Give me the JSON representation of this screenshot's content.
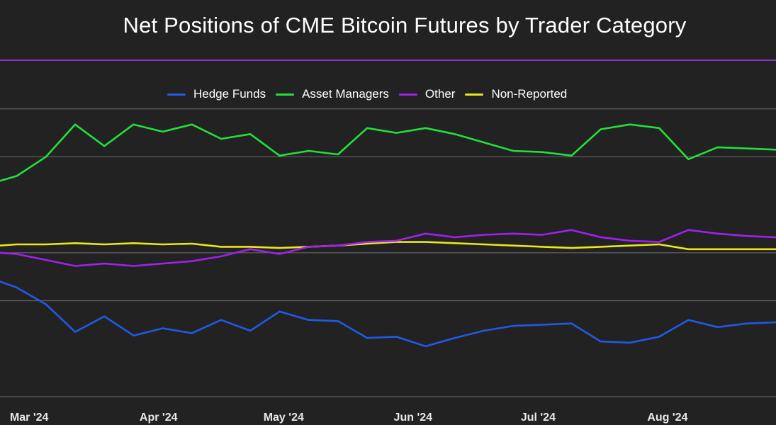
{
  "chart_data": {
    "type": "line",
    "title": "Net Positions of CME Bitcoin Futures by Trader Category",
    "xlabel": "",
    "ylabel": "",
    "x_axis": {
      "type": "date",
      "range": [
        "2024-02-23",
        "2024-08-27"
      ],
      "tick_labels": [
        "Mar '24",
        "Apr '24",
        "May '24",
        "Jun '24",
        "Jul '24",
        "Aug '24"
      ],
      "tick_dates": [
        "2024-03-01",
        "2024-04-01",
        "2024-05-01",
        "2024-06-01",
        "2024-07-01",
        "2024-08-01"
      ]
    },
    "y_axis": {
      "range": [
        -10,
        4
      ],
      "gridlines": [
        -10,
        -6,
        -4,
        0,
        2,
        4
      ],
      "tick_labels_shown": false
    },
    "grid": true,
    "legend": "top-center",
    "dates": [
      "2024-02-23",
      "2024-02-27",
      "2024-03-05",
      "2024-03-12",
      "2024-03-19",
      "2024-03-26",
      "2024-04-02",
      "2024-04-09",
      "2024-04-16",
      "2024-04-23",
      "2024-04-30",
      "2024-05-07",
      "2024-05-14",
      "2024-05-21",
      "2024-05-28",
      "2024-06-04",
      "2024-06-11",
      "2024-06-18",
      "2024-06-25",
      "2024-07-02",
      "2024-07-09",
      "2024-07-16",
      "2024-07-23",
      "2024-07-30",
      "2024-08-06",
      "2024-08-13",
      "2024-08-20",
      "2024-08-27"
    ],
    "series": [
      {
        "name": "Hedge Funds",
        "color": "#1f5ae8",
        "values": [
          -5.2,
          -5.45,
          -6.15,
          -7.3,
          -6.65,
          -7.45,
          -7.15,
          -7.35,
          -6.8,
          -7.25,
          -6.45,
          -6.8,
          -6.85,
          -7.55,
          -7.5,
          -7.9,
          -7.55,
          -7.25,
          -7.05,
          -7.0,
          -6.95,
          -7.7,
          -7.75,
          -7.5,
          -6.8,
          -7.1,
          -6.95,
          -6.9
        ]
      },
      {
        "name": "Asset Managers",
        "color": "#22e03a",
        "values": [
          -1.0,
          -0.8,
          0.0,
          1.35,
          0.45,
          1.35,
          1.05,
          1.35,
          0.75,
          0.95,
          0.05,
          0.25,
          0.1,
          1.2,
          1.0,
          1.2,
          0.95,
          0.6,
          0.25,
          0.2,
          0.05,
          1.15,
          1.35,
          1.2,
          -0.1,
          0.4,
          0.35,
          0.3
        ]
      },
      {
        "name": "Other",
        "color": "#a020f0",
        "values": [
          -4.0,
          -4.05,
          -4.3,
          -4.55,
          -4.45,
          -4.55,
          -4.45,
          -4.35,
          -4.15,
          -3.85,
          -4.05,
          -3.75,
          -3.7,
          -3.55,
          -3.5,
          -3.2,
          -3.35,
          -3.25,
          -3.2,
          -3.25,
          -3.05,
          -3.35,
          -3.5,
          -3.55,
          -3.05,
          -3.2,
          -3.3,
          -3.35
        ]
      },
      {
        "name": "Non-Reported",
        "color": "#e8e81a",
        "values": [
          -3.7,
          -3.65,
          -3.65,
          -3.6,
          -3.65,
          -3.6,
          -3.65,
          -3.62,
          -3.75,
          -3.75,
          -3.8,
          -3.75,
          -3.7,
          -3.62,
          -3.55,
          -3.55,
          -3.6,
          -3.65,
          -3.7,
          -3.75,
          -3.8,
          -3.75,
          -3.7,
          -3.65,
          -3.85,
          -3.85,
          -3.85,
          -3.85
        ]
      }
    ]
  }
}
